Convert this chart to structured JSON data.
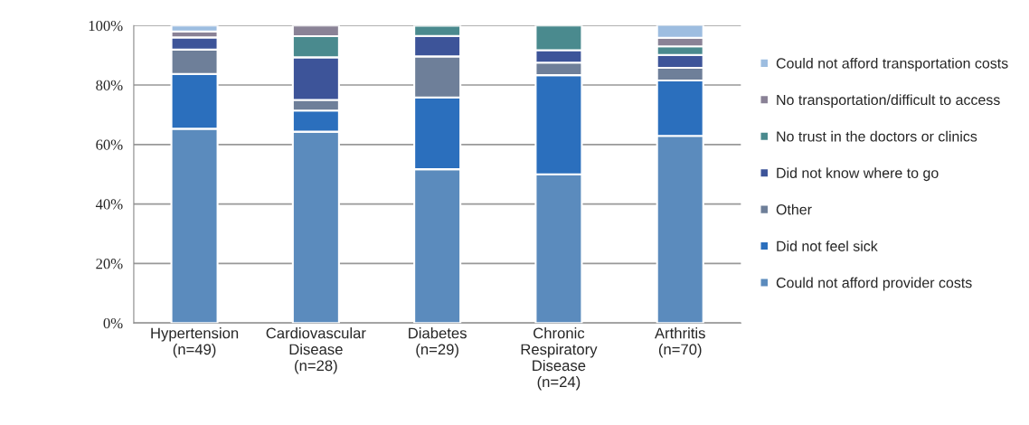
{
  "chart_data": {
    "type": "bar",
    "stacked": true,
    "categories": [
      "Hypertension\n(n=49)",
      "Cardiovascular\nDisease\n(n=28)",
      "Diabetes\n(n=29)",
      "Chronic\nRespiratory\nDisease\n(n=24)",
      "Arthritis\n(n=70)"
    ],
    "series": [
      {
        "name": "Could not afford provider costs",
        "color": "#5b8bbd",
        "values": [
          65.3,
          64.3,
          51.7,
          50.0,
          62.9
        ]
      },
      {
        "name": "Did not feel sick",
        "color": "#2b6fbd",
        "values": [
          18.4,
          7.1,
          24.1,
          33.3,
          18.6
        ]
      },
      {
        "name": "Other",
        "color": "#6e7f99",
        "values": [
          8.2,
          3.6,
          13.8,
          4.2,
          4.3
        ]
      },
      {
        "name": "Did not know where to go",
        "color": "#3d5499",
        "values": [
          4.1,
          14.3,
          6.9,
          4.2,
          4.3
        ]
      },
      {
        "name": "No trust in the doctors or clinics",
        "color": "#4a8a8e",
        "values": [
          null,
          7.1,
          3.4,
          8.3,
          2.9
        ]
      },
      {
        "name": "No transportation/difficult to access",
        "color": "#8a8296",
        "values": [
          2.0,
          3.6,
          null,
          null,
          2.9
        ]
      },
      {
        "name": "Could not afford transportation costs",
        "color": "#9dbde0",
        "values": [
          2.0,
          null,
          null,
          null,
          4.3
        ]
      }
    ],
    "ylim": [
      0,
      100
    ],
    "yticks": [
      {
        "value": 0,
        "label": "0%"
      },
      {
        "value": 20,
        "label": "20%"
      },
      {
        "value": 40,
        "label": "40%"
      },
      {
        "value": 60,
        "label": "60%"
      },
      {
        "value": 80,
        "label": "80%"
      },
      {
        "value": 100,
        "label": "100%"
      }
    ],
    "grid": "y",
    "legend": "right"
  }
}
